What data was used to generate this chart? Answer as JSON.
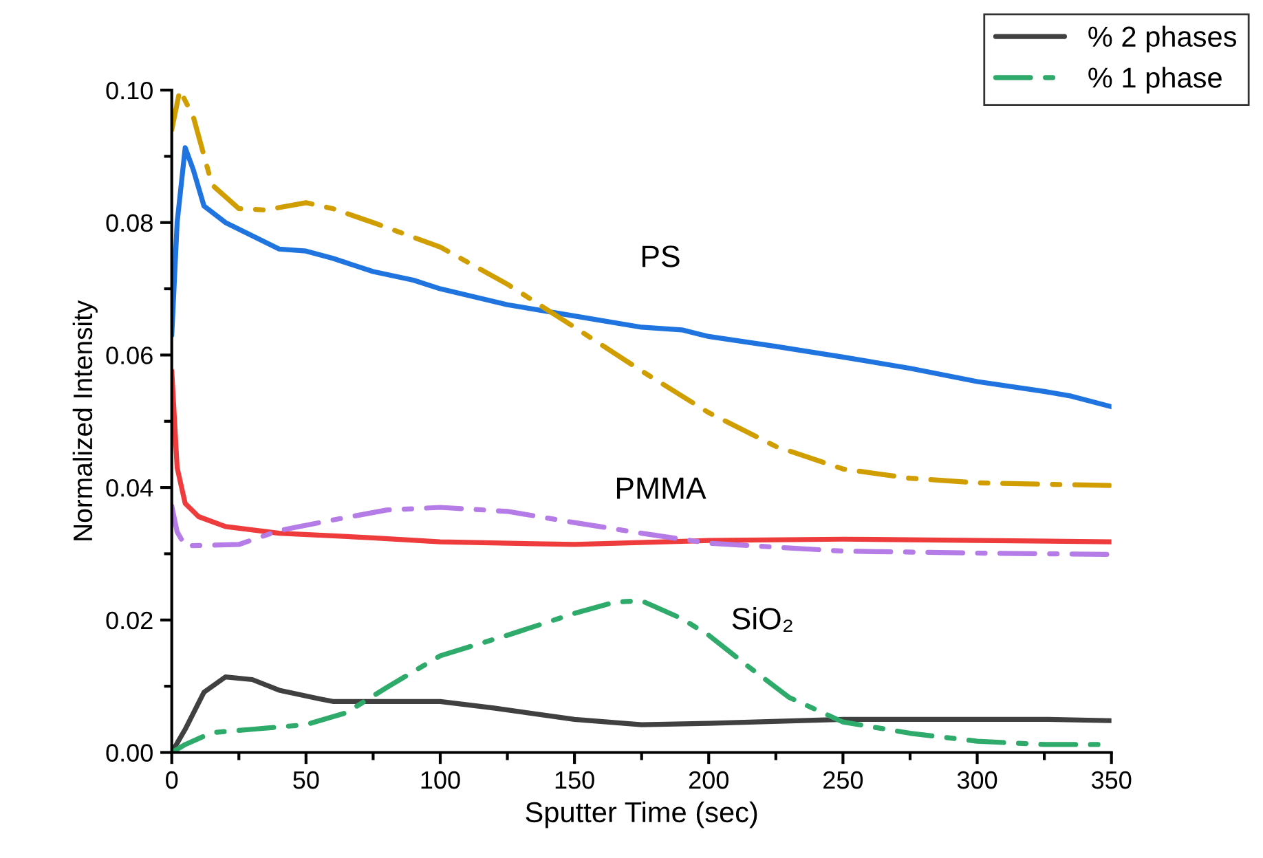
{
  "chart_data": {
    "type": "line",
    "xlabel": "Sputter Time (sec)",
    "ylabel": "Normalized Intensity",
    "xlim": [
      0,
      350
    ],
    "ylim": [
      0,
      0.1
    ],
    "xticks": [
      0,
      {
        "value": 25,
        "label": null
      },
      50,
      {
        "value": 75,
        "label": null
      },
      100,
      {
        "value": 125,
        "label": null
      },
      150,
      {
        "value": 175,
        "label": null
      },
      200,
      {
        "value": 225,
        "label": null
      },
      250,
      {
        "value": 275,
        "label": null
      },
      300,
      {
        "value": 325,
        "label": null
      },
      350
    ],
    "yticks": [
      {
        "value": 0,
        "label": "0.00"
      },
      {
        "value": 0.01,
        "label": null
      },
      {
        "value": 0.02,
        "label": "0.02"
      },
      {
        "value": 0.03,
        "label": null
      },
      {
        "value": 0.04,
        "label": "0.04"
      },
      {
        "value": 0.05,
        "label": null
      },
      {
        "value": 0.06,
        "label": "0.06"
      },
      {
        "value": 0.07,
        "label": null
      },
      {
        "value": 0.08,
        "label": "0.08"
      },
      {
        "value": 0.09,
        "label": null
      },
      {
        "value": 0.1,
        "label": "0.10"
      }
    ],
    "grid": false,
    "legend": "top right",
    "marker": "none",
    "annotations": [
      "PS",
      "PMMA",
      "SiO₂"
    ],
    "series": [
      {
        "color": "#1f74e0",
        "line_style": "solid",
        "x": [
          0,
          2,
          5,
          8,
          12,
          20,
          30,
          40,
          50,
          60,
          75,
          90,
          100,
          125,
          150,
          175,
          190,
          200,
          225,
          250,
          275,
          300,
          325,
          335,
          350
        ],
        "values": [
          0.063,
          0.08,
          0.0913,
          0.088,
          0.0825,
          0.08,
          0.078,
          0.076,
          0.0757,
          0.0746,
          0.0726,
          0.0713,
          0.07,
          0.0676,
          0.0659,
          0.0642,
          0.0638,
          0.0628,
          0.0613,
          0.0597,
          0.058,
          0.056,
          0.0545,
          0.0538,
          0.0522
        ]
      },
      {
        "color": "#d19e00",
        "line_style": "dashdot",
        "x": [
          0,
          3,
          8,
          15,
          25,
          35,
          50,
          60,
          75,
          100,
          125,
          150,
          175,
          200,
          225,
          250,
          275,
          300,
          350
        ],
        "values": [
          0.094,
          0.1,
          0.096,
          0.0857,
          0.0821,
          0.0819,
          0.083,
          0.0821,
          0.08,
          0.0763,
          0.0707,
          0.0642,
          0.0576,
          0.0513,
          0.0462,
          0.0428,
          0.0414,
          0.0407,
          0.0403
        ]
      },
      {
        "color": "#ee3b3b",
        "line_style": "solid",
        "x": [
          0,
          2,
          5,
          10,
          20,
          40,
          75,
          100,
          150,
          200,
          250,
          300,
          350
        ],
        "values": [
          0.0576,
          0.043,
          0.0376,
          0.0356,
          0.0341,
          0.0331,
          0.0324,
          0.0318,
          0.0314,
          0.032,
          0.0322,
          0.032,
          0.0318
        ]
      },
      {
        "color": "#b57be6",
        "line_style": "dashdot",
        "x": [
          0,
          2,
          5,
          25,
          40,
          60,
          80,
          100,
          125,
          150,
          175,
          200,
          225,
          250,
          300,
          350
        ],
        "values": [
          0.0372,
          0.0333,
          0.0312,
          0.0314,
          0.0335,
          0.0351,
          0.0366,
          0.037,
          0.0364,
          0.0347,
          0.0331,
          0.0316,
          0.031,
          0.0304,
          0.0301,
          0.0299
        ]
      },
      {
        "name": "% 2 phases",
        "color": "#404040",
        "line_style": "solid",
        "x": [
          0,
          5,
          12,
          20,
          30,
          40,
          55,
          60,
          75,
          100,
          120,
          150,
          175,
          200,
          250,
          300,
          325,
          350
        ],
        "values": [
          0,
          0.0035,
          0.0091,
          0.0114,
          0.011,
          0.0094,
          0.0081,
          0.0077,
          0.0077,
          0.0077,
          0.0067,
          0.005,
          0.0042,
          0.0044,
          0.005,
          0.005,
          0.005,
          0.0048
        ]
      },
      {
        "name": "% 1 phase",
        "color": "#2eaa6a",
        "line_style": "dashdot",
        "x": [
          0,
          5,
          15,
          30,
          50,
          65,
          80,
          100,
          125,
          150,
          165,
          175,
          190,
          200,
          215,
          230,
          250,
          275,
          300,
          325,
          350
        ],
        "values": [
          0,
          0.0012,
          0.003,
          0.0035,
          0.0042,
          0.006,
          0.0098,
          0.0146,
          0.0177,
          0.021,
          0.0227,
          0.0229,
          0.0202,
          0.0177,
          0.0129,
          0.0083,
          0.0046,
          0.0029,
          0.0017,
          0.0012,
          0.0012
        ]
      }
    ]
  }
}
